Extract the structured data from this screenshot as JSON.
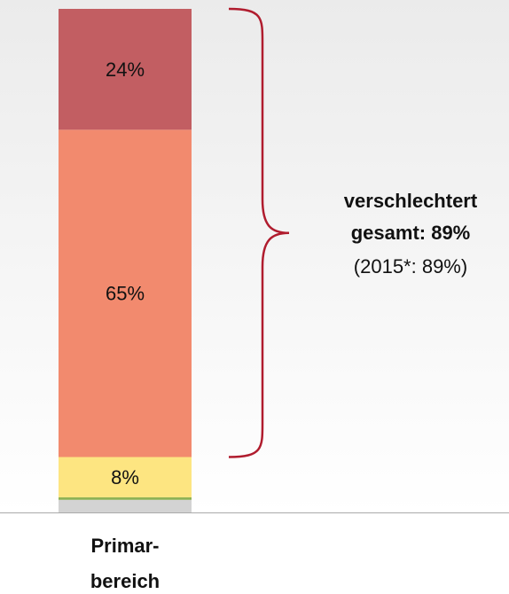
{
  "chart_data": {
    "type": "stacked_bar",
    "categories": [
      "Primar-\nbereich"
    ],
    "series": [
      {
        "color": "#d3d3d3",
        "values": [
          2.5
        ],
        "value_labels": [
          null
        ]
      },
      {
        "color": "#8fb255",
        "values": [
          0.5
        ],
        "value_labels": [
          null
        ]
      },
      {
        "color": "#fde581",
        "values": [
          8
        ],
        "value_labels": [
          "8%"
        ]
      },
      {
        "color": "#f28a6e",
        "values": [
          65
        ],
        "value_labels": [
          "65%"
        ]
      },
      {
        "color": "#c25e62",
        "values": [
          24
        ],
        "value_labels": [
          "24%"
        ]
      }
    ],
    "ylim": [
      0,
      100
    ],
    "annotation": [
      "verschlechtert",
      "gesamt: 89%",
      "(2015*: 89%)"
    ],
    "brace_color": "#b01c2e"
  }
}
